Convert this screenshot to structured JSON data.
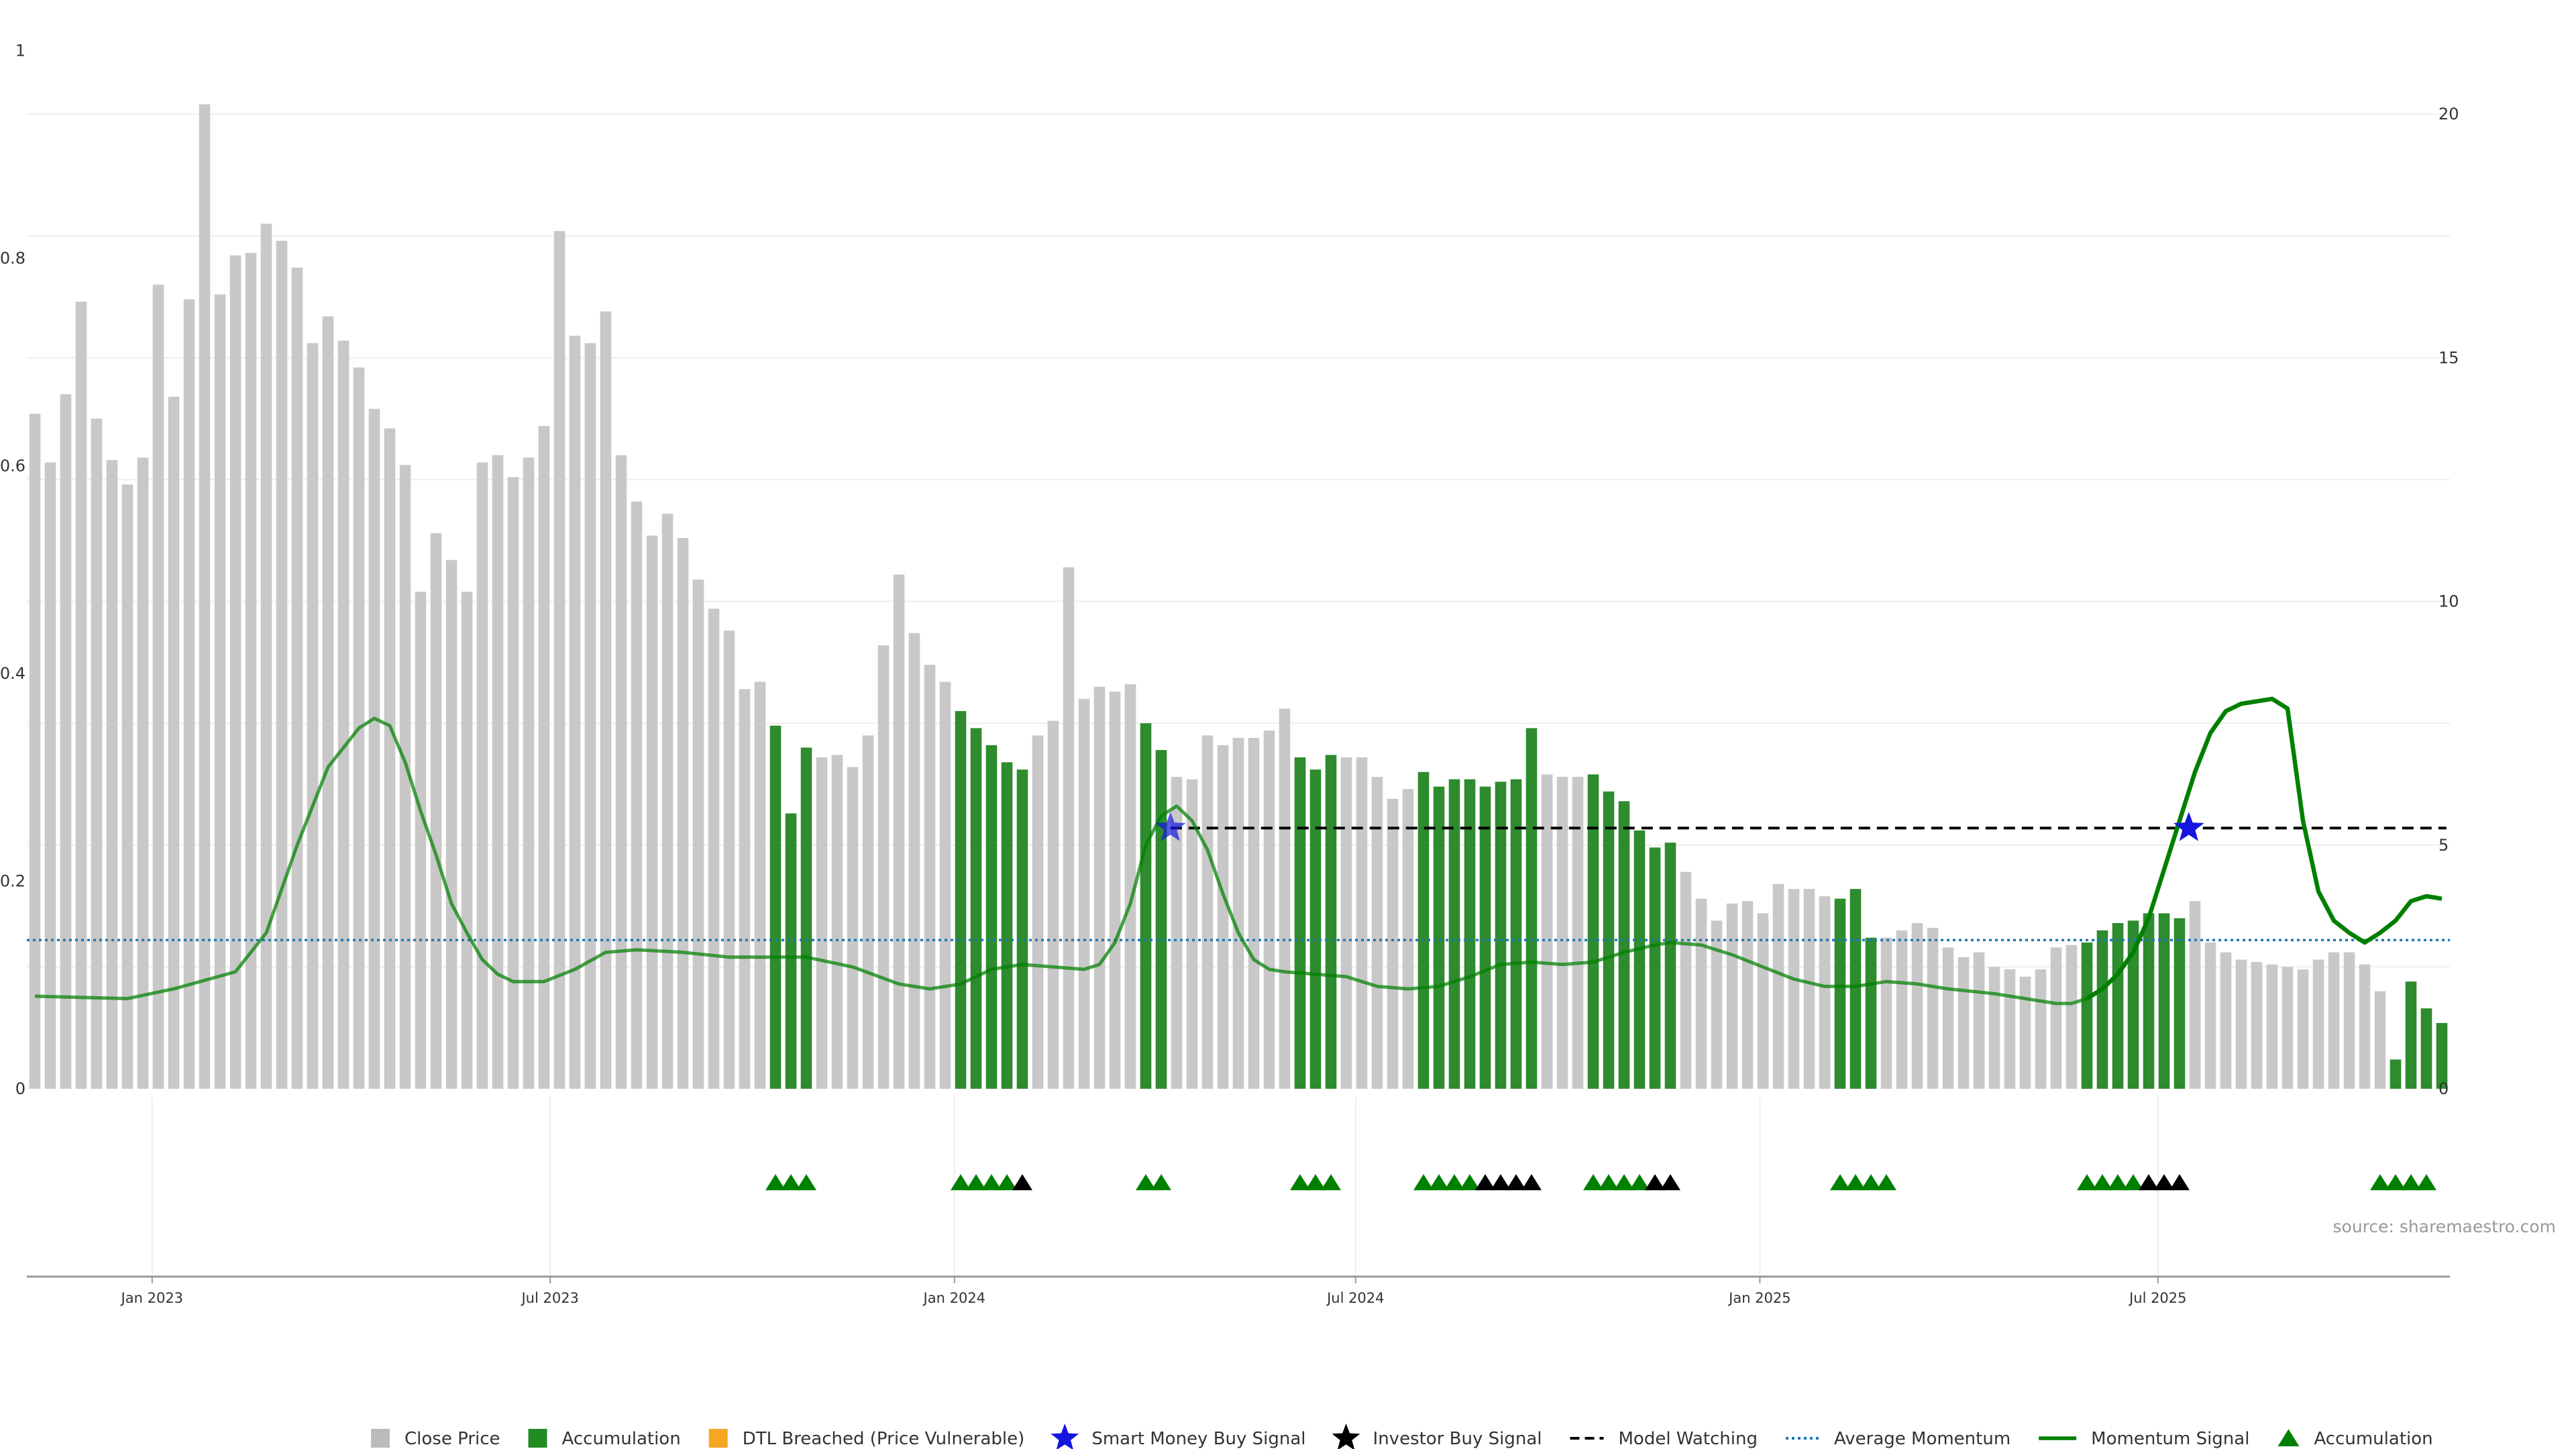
{
  "chart_data": {
    "type": "bar",
    "source": "source: sharemaestro.com",
    "y_left": {
      "ticks": [
        "0",
        "0.2",
        "0.4",
        "0.6",
        "0.8",
        "1"
      ],
      "range": [
        0,
        1
      ]
    },
    "y_right": {
      "ticks": [
        "0",
        "5",
        "10",
        "15",
        "20"
      ],
      "range": [
        0,
        21.3
      ]
    },
    "x_ticks": [
      {
        "label": "Jan 2023",
        "index": 7.6
      },
      {
        "label": "Jul 2023",
        "index": 33.4
      },
      {
        "label": "Jan 2024",
        "index": 59.6
      },
      {
        "label": "Jul 2024",
        "index": 85.6
      },
      {
        "label": "Jan 2025",
        "index": 111.8
      },
      {
        "label": "Jul 2025",
        "index": 137.6
      }
    ],
    "legend": [
      {
        "label": "Close Price",
        "marker": "square",
        "color": "#bbbbbb"
      },
      {
        "label": "Accumulation",
        "marker": "square",
        "color": "#228b22"
      },
      {
        "label": "DTL Breached (Price Vulnerable)",
        "marker": "square",
        "color": "#f5a623"
      },
      {
        "label": "Smart Money Buy Signal",
        "marker": "star",
        "color": "#1515e0"
      },
      {
        "label": "Investor Buy Signal",
        "marker": "star",
        "color": "#000000"
      },
      {
        "label": "Model Watching",
        "marker": "dashed",
        "color": "#000000"
      },
      {
        "label": "Average Momentum",
        "marker": "dotted",
        "color": "#1f77b4"
      },
      {
        "label": "Momentum Signal",
        "marker": "line",
        "color": "#008000"
      },
      {
        "label": "Accumulation",
        "marker": "triangle",
        "color": "#008000"
      }
    ],
    "colors": {
      "price": "#c8c8c8",
      "accumulation": "#2e8b2e",
      "momentum": "#008000",
      "avg_momentum": "#1f77b4",
      "watch": "#000000",
      "smart_star": "#1515e0"
    },
    "close_price": [
      13.85,
      12.85,
      14.25,
      16.15,
      13.75,
      12.9,
      12.4,
      12.95,
      16.5,
      14.2,
      16.2,
      20.2,
      16.3,
      17.1,
      17.15,
      17.75,
      17.4,
      16.85,
      15.3,
      15.85,
      15.35,
      14.8,
      13.95,
      13.55,
      12.8,
      10.2,
      11.4,
      10.85,
      10.2,
      12.85,
      13.0,
      12.55,
      12.95,
      13.6,
      17.6,
      15.45,
      15.3,
      15.95,
      13.0,
      12.05,
      11.35,
      11.8,
      11.3,
      10.45,
      9.85,
      9.4,
      8.2,
      8.35,
      7.45,
      5.65,
      7.0,
      6.8,
      6.85,
      6.6,
      7.25,
      9.1,
      10.55,
      9.35,
      8.7,
      8.35,
      7.75,
      7.4,
      7.05,
      6.7,
      6.55,
      7.25,
      7.55,
      10.7,
      8.0,
      8.25,
      8.15,
      8.3,
      7.5,
      6.95,
      6.4,
      6.35,
      7.25,
      7.05,
      7.2,
      7.2,
      7.35,
      7.8,
      6.8,
      6.55,
      6.85,
      6.8,
      6.8,
      6.4,
      5.95,
      6.15,
      6.5,
      6.2,
      6.35,
      6.35,
      6.2,
      6.3,
      6.35,
      7.4,
      6.45,
      6.4,
      6.4,
      6.45,
      6.1,
      5.9,
      5.3,
      4.95,
      5.05,
      4.45,
      3.9,
      3.45,
      3.8,
      3.85,
      3.6,
      4.2,
      4.1,
      4.1,
      3.95,
      3.9,
      4.1,
      3.1,
      3.1,
      3.25,
      3.4,
      3.3,
      2.9,
      2.7,
      2.8,
      2.5,
      2.45,
      2.3,
      2.45,
      2.9,
      2.95,
      3.0,
      3.25,
      3.4,
      3.45,
      3.6,
      3.6,
      3.5,
      3.85,
      3.0,
      2.8,
      2.65,
      2.6,
      2.55,
      2.5,
      2.45,
      2.65,
      2.8,
      2.8,
      2.55,
      2.0,
      0.6,
      2.2,
      1.65,
      1.35
    ],
    "accumulation_ranges": [
      [
        48,
        50
      ],
      [
        60,
        64
      ],
      [
        72,
        73
      ],
      [
        82,
        84
      ],
      [
        90,
        97
      ],
      [
        101,
        106
      ],
      [
        117,
        119
      ],
      [
        133,
        139
      ],
      [
        153,
        156
      ]
    ],
    "momentum_signal": [
      [
        0,
        1.9
      ],
      [
        6,
        1.85
      ],
      [
        9,
        2.05
      ],
      [
        13,
        2.4
      ],
      [
        15,
        3.2
      ],
      [
        17,
        5.0
      ],
      [
        19,
        6.6
      ],
      [
        21,
        7.4
      ],
      [
        22,
        7.6
      ],
      [
        23,
        7.45
      ],
      [
        24,
        6.7
      ],
      [
        25,
        5.7
      ],
      [
        26,
        4.8
      ],
      [
        27,
        3.8
      ],
      [
        28,
        3.2
      ],
      [
        29,
        2.65
      ],
      [
        30,
        2.35
      ],
      [
        31,
        2.2
      ],
      [
        33,
        2.2
      ],
      [
        35,
        2.45
      ],
      [
        37,
        2.8
      ],
      [
        39,
        2.85
      ],
      [
        42,
        2.8
      ],
      [
        45,
        2.7
      ],
      [
        50,
        2.7
      ],
      [
        53,
        2.5
      ],
      [
        56,
        2.15
      ],
      [
        58,
        2.05
      ],
      [
        60,
        2.15
      ],
      [
        62,
        2.45
      ],
      [
        64,
        2.55
      ],
      [
        66,
        2.5
      ],
      [
        68,
        2.45
      ],
      [
        69,
        2.55
      ],
      [
        70,
        3.0
      ],
      [
        71,
        3.8
      ],
      [
        72,
        5.0
      ],
      [
        73,
        5.6
      ],
      [
        74,
        5.8
      ],
      [
        75,
        5.5
      ],
      [
        76,
        4.9
      ],
      [
        77,
        4.0
      ],
      [
        78,
        3.2
      ],
      [
        79,
        2.65
      ],
      [
        80,
        2.45
      ],
      [
        81,
        2.4
      ],
      [
        83,
        2.35
      ],
      [
        85,
        2.3
      ],
      [
        87,
        2.1
      ],
      [
        89,
        2.05
      ],
      [
        91,
        2.1
      ],
      [
        93,
        2.3
      ],
      [
        95,
        2.55
      ],
      [
        97,
        2.6
      ],
      [
        99,
        2.55
      ],
      [
        101,
        2.6
      ],
      [
        103,
        2.8
      ],
      [
        105,
        2.95
      ],
      [
        106,
        3.0
      ],
      [
        108,
        2.95
      ],
      [
        110,
        2.75
      ],
      [
        112,
        2.5
      ],
      [
        114,
        2.25
      ],
      [
        116,
        2.1
      ],
      [
        118,
        2.1
      ],
      [
        120,
        2.2
      ],
      [
        122,
        2.15
      ],
      [
        124,
        2.05
      ],
      [
        127,
        1.95
      ],
      [
        129,
        1.85
      ],
      [
        131,
        1.75
      ],
      [
        132,
        1.75
      ],
      [
        133,
        1.85
      ],
      [
        134,
        2.05
      ],
      [
        135,
        2.35
      ],
      [
        136,
        2.8
      ],
      [
        137,
        3.5
      ],
      [
        138,
        4.5
      ],
      [
        139,
        5.5
      ],
      [
        140,
        6.5
      ],
      [
        141,
        7.3
      ],
      [
        142,
        7.75
      ],
      [
        143,
        7.9
      ],
      [
        144,
        7.95
      ],
      [
        145,
        8.0
      ],
      [
        146,
        7.8
      ],
      [
        147,
        5.5
      ],
      [
        148,
        4.05
      ],
      [
        149,
        3.45
      ],
      [
        150,
        3.2
      ],
      [
        151,
        3.0
      ],
      [
        152,
        3.2
      ],
      [
        153,
        3.45
      ],
      [
        154,
        3.85
      ],
      [
        155,
        3.95
      ],
      [
        156,
        3.9
      ]
    ],
    "average_momentum": 3.05,
    "model_watching": {
      "level": 5.35,
      "from_index": 73.6,
      "to_index": 156.3
    },
    "smart_money_buy": [
      {
        "index": 73.6,
        "value": 5.35
      },
      {
        "index": 139.6,
        "value": 5.35
      }
    ],
    "accumulation_markers": [
      48,
      49,
      50,
      60,
      61,
      62,
      63,
      72,
      73,
      82,
      83,
      84,
      90,
      91,
      92,
      93,
      101,
      102,
      103,
      104,
      117,
      118,
      119,
      120,
      133,
      134,
      135,
      136,
      152,
      153,
      154,
      155
    ],
    "investor_markers": [
      64,
      94,
      95,
      96,
      97,
      105,
      106,
      137,
      138,
      139
    ]
  }
}
